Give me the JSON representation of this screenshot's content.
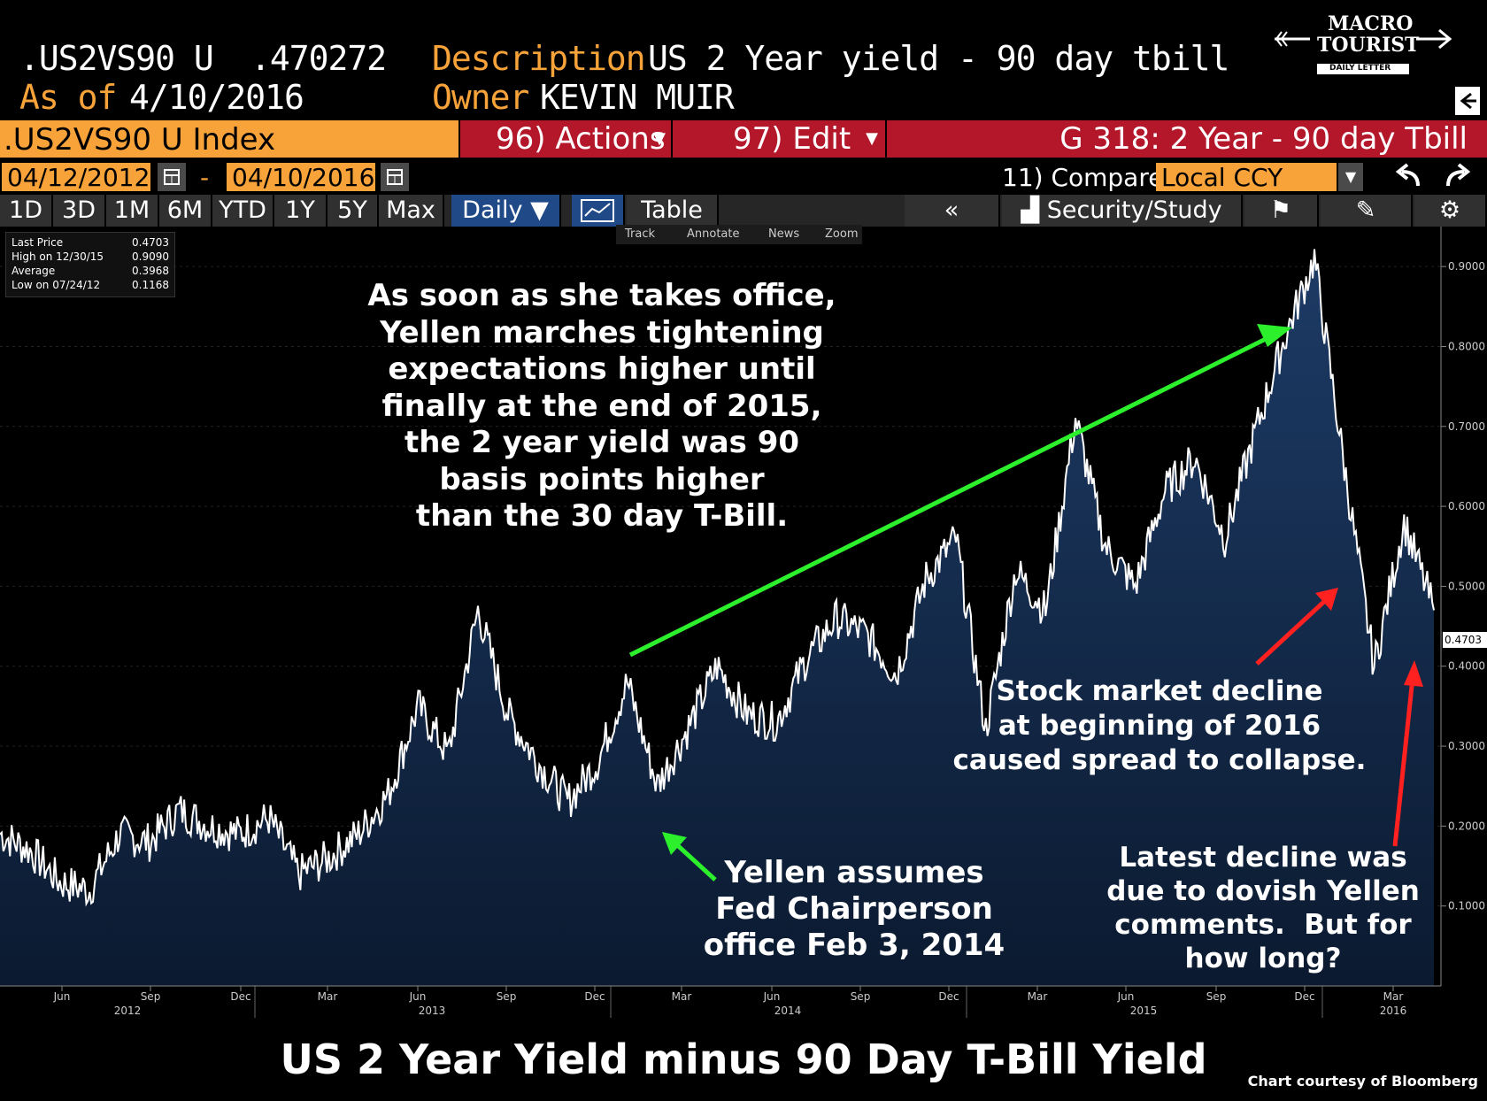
{
  "header": {
    "ticker": ".US2VS90 U",
    "value": ".470272",
    "description_label": "Description",
    "description": "US 2 Year yield - 90 day tbill",
    "asof_label": "As of",
    "asof": "4/10/2016",
    "owner_label": "Owner",
    "owner": "KEVIN MUIR"
  },
  "logo": {
    "line1": "MACRO",
    "line2": "TOURIST",
    "line3": "DAILY LETTER"
  },
  "index_bar": {
    "index_label": ".US2VS90 U Index",
    "actions": "96) Actions",
    "edit": "97) Edit",
    "chart_name": "G 318: 2 Year - 90 day Tbill"
  },
  "date_row": {
    "start": "04/12/2012",
    "dash": "-",
    "end": "04/10/2016",
    "compare": "11) Compare",
    "ccy": "Local CCY"
  },
  "tabs": [
    "1D",
    "3D",
    "1M",
    "6M",
    "YTD",
    "1Y",
    "5Y",
    "Max"
  ],
  "period": "Daily",
  "table_label": "Table",
  "study_label": "Security/Study",
  "mini_toolbar": [
    "Track",
    "Annotate",
    "News",
    "Zoom"
  ],
  "legend": [
    {
      "label": "Last Price",
      "value": "0.4703"
    },
    {
      "label": "High on 12/30/15",
      "value": "0.9090"
    },
    {
      "label": "Average",
      "value": "0.3968"
    },
    {
      "label": "Low on 07/24/12",
      "value": "0.1168"
    }
  ],
  "last_label": "0.4703",
  "annotations": {
    "top": "As soon as she takes office,\nYellen marches tightening\nexpectations higher until\nfinally at the end of 2015,\nthe 2 year yield was 90\nbasis points higher\nthan the 30 day T-Bill.",
    "yellen": "Yellen assumes\nFed Chairperson\noffice Feb 3, 2014",
    "stock": "Stock market decline\nat beginning of 2016\ncaused spread to collapse.",
    "latest": "Latest decline was\ndue to dovish Yellen\ncomments.  But for\nhow long?"
  },
  "footer_title": "US 2 Year Yield minus 90 Day T-Bill Yield",
  "credit": "Chart courtesy of Bloomberg",
  "colors": {
    "orange": "#f7a33a",
    "red": "#b4162a",
    "area_top": "#1d3b66",
    "area_bottom": "#0b1a30",
    "green_arrow": "#2cf02c",
    "red_arrow": "#ff2020"
  },
  "chart_data": {
    "type": "area",
    "title": "",
    "xlabel": "",
    "ylabel": "",
    "ylim": [
      0.0,
      0.95
    ],
    "yticks": [
      "0.9000",
      "0.8000",
      "0.7000",
      "0.6000",
      "0.5000",
      "0.4000",
      "0.3000",
      "0.2000",
      "0.1000"
    ],
    "month_ticks": [
      "Jun",
      "Sep",
      "Dec",
      "Mar",
      "Jun",
      "Sep",
      "Dec",
      "Mar",
      "Jun",
      "Sep",
      "Dec",
      "Mar",
      "Jun",
      "Sep",
      "Dec",
      "Mar"
    ],
    "year_ticks": [
      "2012",
      "2013",
      "2014",
      "2015",
      "2016"
    ],
    "x": [
      "2012-04",
      "2012-05",
      "2012-06",
      "2012-07",
      "2012-08",
      "2012-09",
      "2012-10",
      "2012-11",
      "2012-12",
      "2013-01",
      "2013-02",
      "2013-03",
      "2013-04",
      "2013-05",
      "2013-06",
      "2013-07",
      "2013-08",
      "2013-09",
      "2013-10",
      "2013-11",
      "2013-12",
      "2014-01",
      "2014-02",
      "2014-03",
      "2014-04",
      "2014-05",
      "2014-06",
      "2014-07",
      "2014-08",
      "2014-09",
      "2014-10",
      "2014-11",
      "2014-12",
      "2015-01",
      "2015-02",
      "2015-03",
      "2015-04",
      "2015-05",
      "2015-06",
      "2015-07",
      "2015-08",
      "2015-09",
      "2015-10",
      "2015-11",
      "2015-12",
      "2016-01",
      "2016-02",
      "2016-03",
      "2016-04"
    ],
    "series": [
      {
        "values": [
          0.19,
          0.17,
          0.13,
          0.12,
          0.19,
          0.18,
          0.22,
          0.2,
          0.19,
          0.21,
          0.14,
          0.16,
          0.19,
          0.24,
          0.35,
          0.29,
          0.47,
          0.34,
          0.28,
          0.23,
          0.28,
          0.38,
          0.25,
          0.32,
          0.4,
          0.34,
          0.33,
          0.41,
          0.46,
          0.44,
          0.39,
          0.51,
          0.56,
          0.32,
          0.52,
          0.47,
          0.71,
          0.55,
          0.5,
          0.62,
          0.66,
          0.56,
          0.69,
          0.81,
          0.91,
          0.65,
          0.4,
          0.58,
          0.47
        ]
      }
    ],
    "last_value": 0.4703,
    "high": 0.909,
    "average": 0.3968,
    "low": 0.1168
  }
}
